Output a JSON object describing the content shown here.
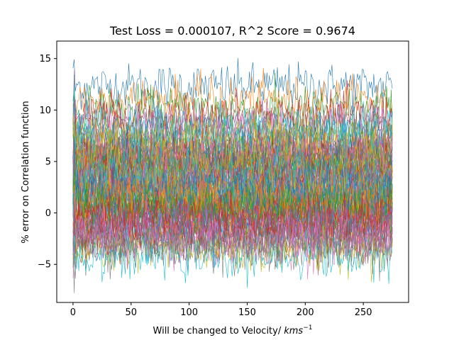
{
  "chart_data": {
    "type": "line",
    "title": "Test Loss = 0.000107, R^2 Score = 0.9674",
    "xlabel": "Will be changed to Velocity/",
    "xlabel_unit_base": "kms",
    "xlabel_unit_exp": "−1",
    "ylabel": "% error on Correlation function",
    "xlim": [
      -14,
      289
    ],
    "ylim": [
      -8.7,
      16.7
    ],
    "x_ticks": [
      0,
      50,
      100,
      150,
      200,
      250
    ],
    "y_ticks": [
      -5,
      0,
      5,
      10,
      15
    ],
    "x_tick_labels": [
      "0",
      "50",
      "100",
      "150",
      "200",
      "250"
    ],
    "y_tick_labels": [
      "−5",
      "0",
      "5",
      "10",
      "15"
    ],
    "x_range": [
      0,
      275
    ],
    "points_per_series": 276,
    "grid": false,
    "legend": "none",
    "series_count": 90,
    "series_means": [
      12.3,
      11.0,
      10.0,
      9.4,
      8.8,
      8.3,
      7.9,
      7.6,
      7.2,
      6.9,
      6.6,
      6.3,
      6.1,
      5.8,
      5.6,
      5.4,
      5.2,
      5.0,
      4.8,
      4.6,
      4.4,
      4.2,
      4.0,
      3.8,
      3.6,
      3.4,
      3.2,
      3.0,
      2.8,
      2.6,
      2.4,
      2.2,
      2.0,
      1.8,
      1.6,
      1.4,
      1.2,
      1.0,
      0.8,
      0.6,
      0.4,
      0.2,
      0.0,
      -0.2,
      -0.4,
      -0.6,
      -0.8,
      -1.0,
      -1.2,
      -1.4,
      -1.6,
      -1.8,
      -2.0,
      -2.2,
      -2.4,
      -2.7,
      -3.0,
      -3.3,
      -3.7,
      -4.2,
      5.3,
      4.9,
      4.5,
      4.1,
      3.7,
      3.3,
      2.9,
      2.5,
      2.1,
      1.7,
      1.3,
      0.9,
      0.5,
      0.1,
      -0.3,
      6.0,
      6.4,
      5.7,
      4.7,
      3.9,
      2.3,
      1.5,
      0.7,
      -0.5,
      -1.1,
      -1.7,
      -2.3,
      -2.9,
      7.4,
      8.1
    ],
    "series_spread": 1.1,
    "colors": [
      "#1f77b4",
      "#ff7f0e",
      "#2ca02c",
      "#d62728",
      "#9467bd",
      "#8c564b",
      "#e377c2",
      "#7f7f7f",
      "#bcbd22",
      "#17becf"
    ],
    "line_width": 0.6
  }
}
